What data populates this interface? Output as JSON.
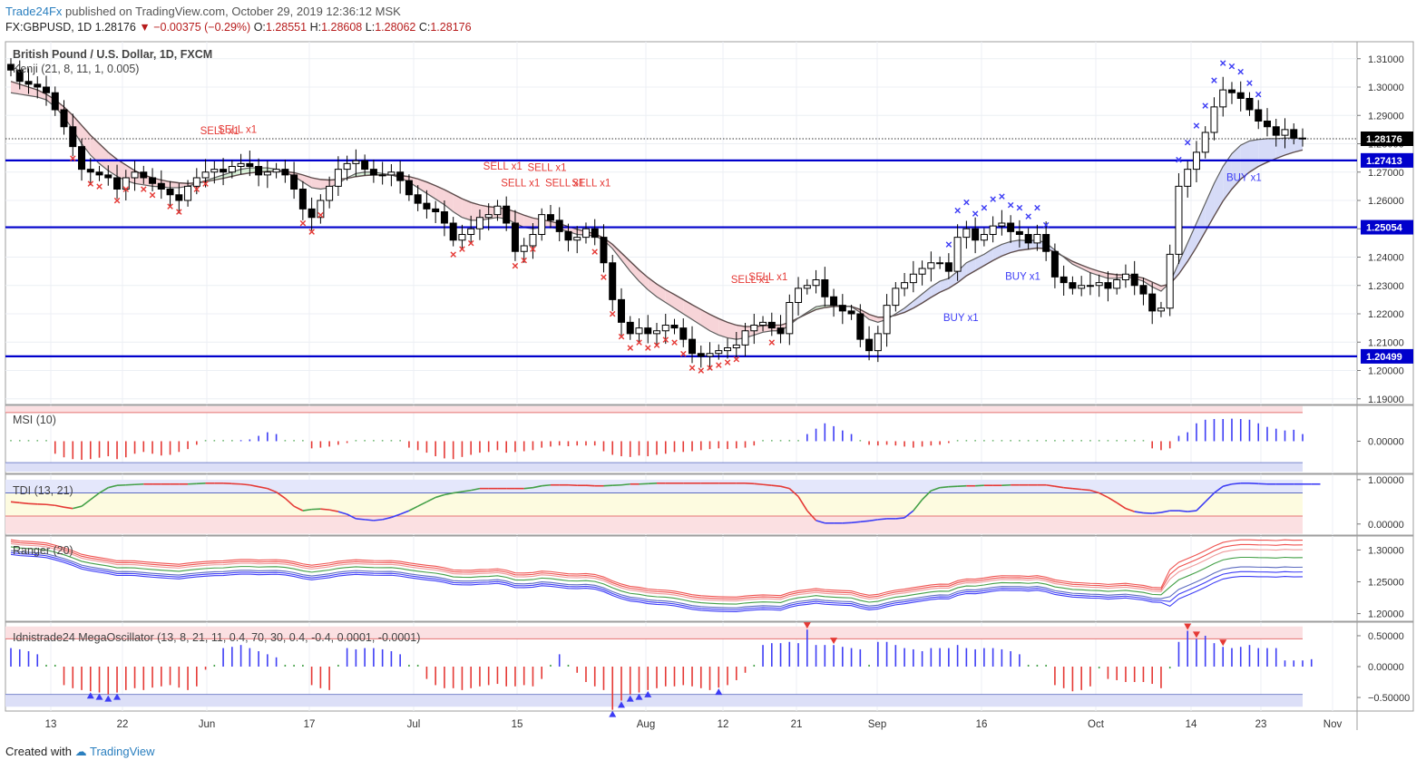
{
  "header": {
    "publisher": "Trade24Fx",
    "published_text": "published on TradingView.com, October 29, 2019 12:36:12 MSK"
  },
  "ohlc": {
    "symbol": "FX:GBPUSD, 1D",
    "last": "1.28176",
    "change": "−0.00375 (−0.29%)",
    "o_label": "O:",
    "o": "1.28551",
    "h_label": "H:",
    "h": "1.28608",
    "l_label": "L:",
    "l": "1.28062",
    "c_label": "C:",
    "c": "1.28176"
  },
  "footer": {
    "created_with": "Created with",
    "brand": "TradingView"
  },
  "colors": {
    "bull_fill": "#ffffff",
    "bear_fill": "#000000",
    "level": "#0000cc",
    "sell": "#e53935",
    "buy": "#3d3df5",
    "band_upper": "#f6cfd3",
    "band_lower": "#cfd5f5",
    "kenji_bear": "#f7d4d8",
    "kenji_bull": "#d8f0d8",
    "kenji_buy": "#d6dbf7"
  },
  "chart_data": [
    {
      "type": "candlestick",
      "title": "British Pound / U.S. Dollar, 1D, FXCM",
      "indicator_label": "Kenji (21, 8, 11, 1, 0.005)",
      "x_tick_labels": [
        "13",
        "22",
        "Jun",
        "17",
        "Jul",
        "15",
        "Aug",
        "12",
        "21",
        "Sep",
        "16",
        "Oct",
        "14",
        "23",
        "Nov"
      ],
      "y_ticks": [
        "1.31000",
        "1.30000",
        "1.29000",
        "1.28000",
        "1.27000",
        "1.26000",
        "1.25000",
        "1.24000",
        "1.23000",
        "1.22000",
        "1.21000",
        "1.20000",
        "1.19000"
      ],
      "ylim": [
        1.188,
        1.316
      ],
      "levels": [
        {
          "value": 1.27413,
          "label": "1.27413"
        },
        {
          "value": 1.25054,
          "label": "1.25054"
        },
        {
          "value": 1.20499,
          "label": "1.20499"
        }
      ],
      "last_price": {
        "value": 1.28176,
        "label": "1.28176"
      },
      "closes": [
        1.306,
        1.302,
        1.301,
        1.3,
        1.298,
        1.292,
        1.286,
        1.279,
        1.271,
        1.27,
        1.269,
        1.268,
        1.264,
        1.268,
        1.27,
        1.268,
        1.266,
        1.264,
        1.262,
        1.26,
        1.265,
        1.268,
        1.27,
        1.271,
        1.27,
        1.272,
        1.273,
        1.272,
        1.269,
        1.27,
        1.271,
        1.269,
        1.264,
        1.257,
        1.254,
        1.26,
        1.265,
        1.271,
        1.273,
        1.274,
        1.271,
        1.269,
        1.269,
        1.27,
        1.267,
        1.262,
        1.259,
        1.257,
        1.256,
        1.252,
        1.246,
        1.248,
        1.25,
        1.254,
        1.255,
        1.258,
        1.252,
        1.242,
        1.244,
        1.248,
        1.255,
        1.253,
        1.249,
        1.246,
        1.247,
        1.25,
        1.247,
        1.238,
        1.225,
        1.217,
        1.213,
        1.215,
        1.213,
        1.214,
        1.216,
        1.215,
        1.211,
        1.206,
        1.205,
        1.206,
        1.207,
        1.208,
        1.209,
        1.214,
        1.216,
        1.217,
        1.215,
        1.213,
        1.224,
        1.229,
        1.23,
        1.232,
        1.226,
        1.223,
        1.221,
        1.22,
        1.211,
        1.207,
        1.213,
        1.223,
        1.229,
        1.231,
        1.234,
        1.236,
        1.238,
        1.238,
        1.235,
        1.247,
        1.25,
        1.246,
        1.248,
        1.251,
        1.252,
        1.249,
        1.248,
        1.245,
        1.248,
        1.242,
        1.233,
        1.231,
        1.229,
        1.23,
        1.23,
        1.231,
        1.229,
        1.232,
        1.234,
        1.23,
        1.227,
        1.221,
        1.222,
        1.241,
        1.265,
        1.271,
        1.277,
        1.284,
        1.293,
        1.299,
        1.298,
        1.296,
        1.292,
        1.288,
        1.286,
        1.283,
        1.285,
        1.282,
        1.2818
      ],
      "kenji_fast": [
        1.298,
        1.2975,
        1.297,
        1.2965,
        1.2955,
        1.293,
        1.2895,
        1.285,
        1.28,
        1.276,
        1.273,
        1.2705,
        1.2685,
        1.267,
        1.266,
        1.2655,
        1.265,
        1.2648,
        1.2645,
        1.2645,
        1.265,
        1.266,
        1.267,
        1.268,
        1.269,
        1.27,
        1.271,
        1.2715,
        1.2715,
        1.2715,
        1.271,
        1.27,
        1.2685,
        1.2665,
        1.2645,
        1.264,
        1.2645,
        1.266,
        1.268,
        1.2695,
        1.27,
        1.27,
        1.2695,
        1.269,
        1.268,
        1.2665,
        1.2645,
        1.2625,
        1.2605,
        1.2585,
        1.256,
        1.254,
        1.253,
        1.253,
        1.2535,
        1.254,
        1.2535,
        1.252,
        1.2505,
        1.25,
        1.2505,
        1.2505,
        1.25,
        1.249,
        1.248,
        1.2478,
        1.2475,
        1.246,
        1.243,
        1.239,
        1.235,
        1.2315,
        1.2285,
        1.226,
        1.224,
        1.222,
        1.22,
        1.218,
        1.216,
        1.214,
        1.2125,
        1.2115,
        1.211,
        1.2115,
        1.2125,
        1.2135,
        1.214,
        1.214,
        1.216,
        1.2185,
        1.2205,
        1.2225,
        1.223,
        1.223,
        1.2228,
        1.2225,
        1.2205,
        1.218,
        1.217,
        1.218,
        1.22,
        1.222,
        1.2245,
        1.227,
        1.2295,
        1.2315,
        1.2325,
        1.235,
        1.238,
        1.2395,
        1.241,
        1.243,
        1.2445,
        1.2455,
        1.246,
        1.2458,
        1.246,
        1.245,
        1.2425,
        1.24,
        1.2375,
        1.236,
        1.2345,
        1.2335,
        1.2325,
        1.2325,
        1.233,
        1.2325,
        1.2315,
        1.2295,
        1.228,
        1.231,
        1.238,
        1.245,
        1.252,
        1.259,
        1.266,
        1.272,
        1.2765,
        1.2795,
        1.281,
        1.2815,
        1.2818,
        1.2818,
        1.282,
        1.282,
        1.2819
      ],
      "kenji_slow": [
        1.302,
        1.301,
        1.3,
        1.299,
        1.2975,
        1.2955,
        1.293,
        1.29,
        1.2865,
        1.283,
        1.28,
        1.277,
        1.2745,
        1.2725,
        1.2705,
        1.269,
        1.268,
        1.2672,
        1.2666,
        1.2662,
        1.266,
        1.2662,
        1.2666,
        1.2672,
        1.2678,
        1.2685,
        1.2692,
        1.2697,
        1.27,
        1.2702,
        1.2703,
        1.2702,
        1.2698,
        1.269,
        1.268,
        1.2674,
        1.2672,
        1.2674,
        1.2678,
        1.2684,
        1.2688,
        1.269,
        1.269,
        1.269,
        1.2688,
        1.2684,
        1.2676,
        1.2665,
        1.2652,
        1.2638,
        1.2622,
        1.2606,
        1.2593,
        1.2584,
        1.2578,
        1.2575,
        1.257,
        1.256,
        1.2548,
        1.2538,
        1.2532,
        1.2526,
        1.2518,
        1.2508,
        1.2498,
        1.249,
        1.2482,
        1.2468,
        1.2445,
        1.2415,
        1.2385,
        1.2355,
        1.2328,
        1.2305,
        1.2285,
        1.2268,
        1.225,
        1.2232,
        1.2215,
        1.2198,
        1.2183,
        1.217,
        1.216,
        1.2155,
        1.2155,
        1.2158,
        1.216,
        1.216,
        1.217,
        1.2185,
        1.22,
        1.2215,
        1.2222,
        1.2226,
        1.2227,
        1.2226,
        1.2215,
        1.2198,
        1.2188,
        1.2188,
        1.2195,
        1.2205,
        1.222,
        1.2238,
        1.2258,
        1.2276,
        1.229,
        1.231,
        1.2334,
        1.2352,
        1.237,
        1.2388,
        1.2404,
        1.2416,
        1.2424,
        1.2428,
        1.2432,
        1.243,
        1.2418,
        1.2402,
        1.2385,
        1.2372,
        1.236,
        1.235,
        1.2342,
        1.2338,
        1.2337,
        1.2333,
        1.2326,
        1.2312,
        1.2298,
        1.2305,
        1.234,
        1.2385,
        1.2435,
        1.249,
        1.2545,
        1.2598,
        1.264,
        1.2675,
        1.27,
        1.272,
        1.2735,
        1.2748,
        1.276,
        1.277,
        1.2778
      ],
      "annotations": [
        {
          "text": "SELL x1",
          "x": 1.277,
          "type": "sell"
        },
        {
          "text": "SELL x1",
          "x": 1.2775,
          "type": "sell"
        },
        {
          "text": "SELL x1",
          "x": 1.2645,
          "type": "sell"
        },
        {
          "text": "SELL x1",
          "x": 1.2585,
          "type": "sell"
        },
        {
          "text": "SELL x1",
          "x": 1.264,
          "type": "sell"
        },
        {
          "text": "SELL x1",
          "x": 1.2585,
          "type": "sell"
        },
        {
          "text": "SELL x1",
          "x": 1.2585,
          "type": "sell"
        },
        {
          "text": "SELL x1",
          "x": 1.2245,
          "type": "sell"
        },
        {
          "text": "SELL x1",
          "x": 1.2255,
          "type": "sell"
        },
        {
          "text": "BUY x1",
          "x": 1.2245,
          "type": "buy"
        },
        {
          "text": "BUY x1",
          "x": 1.239,
          "type": "buy"
        },
        {
          "text": "BUY x1",
          "x": 1.274,
          "type": "buy"
        }
      ]
    },
    {
      "type": "bar",
      "title": "MSI (10)",
      "y_ticks": [
        "0.00000"
      ],
      "values": [
        0.01,
        0.01,
        0.01,
        0.01,
        0.01,
        -0.35,
        -0.45,
        -0.5,
        -0.52,
        -0.5,
        -0.46,
        -0.42,
        -0.5,
        -0.45,
        -0.35,
        -0.3,
        -0.35,
        -0.4,
        -0.38,
        -0.3,
        -0.22,
        -0.1,
        0.01,
        0.02,
        0.02,
        0.02,
        0.03,
        0.05,
        0.15,
        0.25,
        0.2,
        0.01,
        0.01,
        0.01,
        -0.2,
        -0.18,
        -0.15,
        -0.1,
        -0.05,
        0.01,
        0.01,
        0.01,
        0.01,
        0.01,
        0.01,
        -0.18,
        -0.25,
        -0.32,
        -0.42,
        -0.48,
        -0.5,
        -0.44,
        -0.38,
        -0.32,
        -0.3,
        -0.25,
        -0.32,
        -0.3,
        -0.28,
        -0.25,
        -0.18,
        -0.15,
        -0.12,
        -0.14,
        -0.12,
        -0.12,
        -0.12,
        -0.28,
        -0.38,
        -0.42,
        -0.44,
        -0.4,
        -0.42,
        -0.38,
        -0.35,
        -0.3,
        -0.3,
        -0.28,
        -0.25,
        -0.22,
        -0.2,
        -0.22,
        -0.2,
        -0.18,
        -0.12,
        0.01,
        0.01,
        0.01,
        0.01,
        0.02,
        0.2,
        0.35,
        0.5,
        0.42,
        0.3,
        0.2,
        0.01,
        -0.1,
        -0.12,
        -0.1,
        -0.12,
        -0.15,
        -0.18,
        -0.15,
        -0.12,
        -0.1,
        -0.05,
        -0.02,
        0.01,
        0.01,
        0.01,
        0.01,
        0.01,
        0.01,
        0.01,
        0.01,
        0.01,
        0.01,
        0.01,
        0.01,
        0.01,
        0.01,
        0.01,
        0.01,
        0.01,
        0.01,
        0.01,
        0.01,
        0.01,
        -0.2,
        -0.25,
        -0.2,
        0.15,
        0.25,
        0.5,
        0.6,
        0.62,
        0.62,
        0.63,
        0.62,
        0.6,
        0.5,
        0.4,
        0.35,
        0.3,
        0.32,
        0.2
      ],
      "ylim": [
        -0.9,
        1.0
      ]
    },
    {
      "type": "line",
      "title": "TDI (13, 21)",
      "y_ticks": [
        "1.00000",
        "0.00000"
      ],
      "ylim": [
        -0.25,
        1.12
      ],
      "values": [
        0.5,
        0.48,
        0.46,
        0.45,
        0.44,
        0.42,
        0.38,
        0.35,
        0.4,
        0.55,
        0.7,
        0.82,
        0.87,
        0.88,
        0.89,
        0.9,
        0.9,
        0.9,
        0.9,
        0.9,
        0.9,
        0.91,
        0.92,
        0.92,
        0.92,
        0.91,
        0.9,
        0.88,
        0.84,
        0.8,
        0.72,
        0.58,
        0.4,
        0.3,
        0.33,
        0.34,
        0.32,
        0.28,
        0.22,
        0.12,
        0.1,
        0.08,
        0.1,
        0.15,
        0.22,
        0.3,
        0.4,
        0.5,
        0.6,
        0.66,
        0.7,
        0.73,
        0.76,
        0.8,
        0.8,
        0.8,
        0.8,
        0.8,
        0.8,
        0.82,
        0.86,
        0.88,
        0.88,
        0.88,
        0.87,
        0.87,
        0.86,
        0.86,
        0.87,
        0.88,
        0.9,
        0.9,
        0.91,
        0.92,
        0.92,
        0.92,
        0.92,
        0.92,
        0.92,
        0.92,
        0.92,
        0.92,
        0.92,
        0.92,
        0.91,
        0.89,
        0.87,
        0.85,
        0.8,
        0.62,
        0.3,
        0.08,
        0.02,
        0.02,
        0.02,
        0.03,
        0.05,
        0.07,
        0.1,
        0.12,
        0.12,
        0.14,
        0.3,
        0.55,
        0.75,
        0.82,
        0.84,
        0.85,
        0.86,
        0.86,
        0.87,
        0.87,
        0.87,
        0.88,
        0.88,
        0.88,
        0.88,
        0.88,
        0.85,
        0.82,
        0.8,
        0.78,
        0.76,
        0.7,
        0.6,
        0.48,
        0.35,
        0.28,
        0.25,
        0.24,
        0.26,
        0.3,
        0.3,
        0.28,
        0.3,
        0.5,
        0.7,
        0.85,
        0.9,
        0.92,
        0.92,
        0.91,
        0.9,
        0.9,
        0.9,
        0.9,
        0.9,
        0.9,
        0.9
      ]
    },
    {
      "type": "line",
      "title": "Ranger (20)",
      "y_ticks": [
        "1.30000",
        "1.25000",
        "1.20000"
      ],
      "ylim": [
        1.188,
        1.322
      ]
    },
    {
      "type": "bar",
      "title": "Idnistrade24 MegaOscillator (13, 8, 21, 11, 0.4, 70, 30, 0.4, -0.4, 0.0001, -0.0001)",
      "y_ticks": [
        "0.50000",
        "0.00000",
        "−0.50000"
      ],
      "ylim": [
        -0.72,
        0.72
      ],
      "values": [
        0.3,
        0.28,
        0.25,
        0.2,
        0.01,
        0.01,
        -0.3,
        -0.35,
        -0.38,
        -0.4,
        -0.42,
        -0.45,
        -0.42,
        -0.38,
        -0.35,
        -0.38,
        -0.34,
        -0.32,
        -0.3,
        -0.34,
        -0.38,
        -0.32,
        -0.05,
        0.01,
        0.3,
        0.32,
        0.35,
        0.3,
        0.25,
        0.2,
        0.15,
        0.01,
        0.01,
        0.01,
        -0.3,
        -0.35,
        -0.38,
        0.01,
        0.3,
        0.28,
        0.3,
        0.3,
        0.28,
        0.25,
        0.2,
        0.01,
        0.01,
        -0.2,
        -0.3,
        -0.35,
        -0.35,
        -0.38,
        -0.35,
        -0.32,
        -0.3,
        -0.28,
        -0.32,
        -0.32,
        -0.3,
        -0.32,
        -0.2,
        0.01,
        0.2,
        0.01,
        -0.1,
        -0.25,
        -0.32,
        -0.38,
        -0.7,
        -0.55,
        -0.45,
        -0.42,
        -0.38,
        -0.35,
        -0.32,
        -0.32,
        -0.3,
        -0.32,
        -0.35,
        -0.38,
        -0.34,
        -0.3,
        -0.22,
        -0.1,
        0.01,
        0.35,
        0.38,
        0.38,
        0.4,
        0.38,
        0.6,
        0.35,
        0.35,
        0.35,
        0.32,
        0.3,
        0.28,
        0.01,
        0.4,
        0.4,
        0.35,
        0.3,
        0.28,
        0.25,
        0.3,
        0.3,
        0.3,
        0.35,
        0.3,
        0.28,
        0.3,
        0.3,
        0.28,
        0.25,
        0.2,
        0.01,
        0.01,
        0.01,
        -0.3,
        -0.35,
        -0.4,
        -0.38,
        -0.32,
        -0.01,
        -0.2,
        -0.22,
        -0.25,
        -0.25,
        -0.25,
        -0.28,
        -0.35,
        -0.01,
        0.4,
        0.58,
        0.45,
        0.5,
        0.38,
        0.32,
        0.3,
        0.32,
        0.35,
        0.3,
        0.3,
        0.3,
        0.1,
        0.1,
        0.1,
        0.12
      ]
    }
  ]
}
